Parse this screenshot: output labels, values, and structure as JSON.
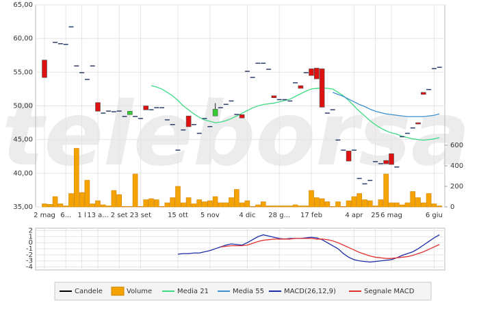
{
  "watermark": "teleborsa",
  "chart_data": [
    {
      "type": "candlestick",
      "categories": [
        "2 mag",
        null,
        null,
        null,
        "6...",
        null,
        null,
        "1 l",
        null,
        null,
        "13 a...",
        null,
        null,
        null,
        "2 set",
        null,
        null,
        null,
        "23 set",
        null,
        null,
        null,
        null,
        null,
        null,
        "15 ott",
        null,
        null,
        null,
        null,
        null,
        "5 nov",
        null,
        null,
        null,
        null,
        null,
        null,
        "4 dic",
        null,
        null,
        null,
        null,
        null,
        "28 g...",
        null,
        null,
        null,
        null,
        null,
        "17 feb",
        null,
        null,
        null,
        null,
        null,
        null,
        null,
        "4 apr",
        null,
        null,
        null,
        "25",
        null,
        null,
        "6 mag",
        null,
        null,
        null,
        null,
        null,
        null,
        null,
        "6 giu",
        null
      ],
      "ylim": [
        35,
        65
      ],
      "yticks": [
        {
          "value": 35,
          "label": "35,00"
        },
        {
          "value": 40,
          "label": "40,00"
        },
        {
          "value": 45,
          "label": "45,00"
        },
        {
          "value": 50,
          "label": "50,00"
        },
        {
          "value": 55,
          "label": "55,00"
        },
        {
          "value": 60,
          "label": "60,00"
        },
        {
          "value": 65,
          "label": "65,00"
        }
      ],
      "y2lim": [
        0,
        1967
      ],
      "y2ticks": [
        0,
        200,
        400,
        600
      ],
      "grid": true,
      "series": [
        {
          "type": "candlestick",
          "name": "Candele",
          "color": "#2c3e6b",
          "up_color": "#33cc33",
          "down_color": "#dd1111",
          "open": [
            56.8,
            null,
            59.5,
            59.3,
            59.2,
            61.8,
            56,
            55,
            54,
            56,
            50.5,
            49,
            49.3,
            49.2,
            49.3,
            48.5,
            48.7,
            48.5,
            48.2,
            50,
            49.5,
            49.8,
            49.8,
            48,
            47.3,
            43.5,
            46.5,
            48.5,
            47.3,
            46,
            48.2,
            47,
            48.5,
            49.8,
            50.3,
            50.8,
            48.8,
            48.7,
            55.2,
            54.3,
            56.4,
            56.4,
            55.5,
            51.5,
            51,
            51,
            50.8,
            53.5,
            53,
            55,
            55.5,
            55.6,
            55.5,
            49,
            49.5,
            45,
            43.5,
            43.3,
            43.5,
            39.3,
            38.5,
            39,
            41.8,
            41.5,
            41.9,
            42.9,
            41,
            45.5,
            46,
            46.8,
            47.5,
            52,
            52.5,
            55.6,
            55.8
          ],
          "high": [
            56.8,
            null,
            59.5,
            59.3,
            59.2,
            61.8,
            56,
            55,
            54,
            56,
            50.5,
            49,
            49.3,
            49.2,
            49.3,
            48.5,
            49.2,
            48.5,
            48.2,
            50,
            49.5,
            49.8,
            49.8,
            48,
            47.3,
            43.5,
            46.5,
            48.5,
            47.3,
            46,
            48.2,
            47,
            50.4,
            49.8,
            50.3,
            50.8,
            48.8,
            48.7,
            55.2,
            54.3,
            56.4,
            56.4,
            55.5,
            51.5,
            51,
            51,
            50.8,
            53.5,
            53,
            55,
            55.5,
            55.6,
            55.5,
            49,
            49.5,
            45,
            43.5,
            43.3,
            43.5,
            39.3,
            38.5,
            39,
            41.8,
            41.5,
            41.9,
            42.9,
            41,
            45.5,
            46,
            46.8,
            47.5,
            52,
            52.5,
            55.6,
            55.8
          ],
          "low": [
            54.2,
            null,
            59.5,
            59.3,
            59.2,
            61.8,
            56,
            55,
            54,
            56,
            49.2,
            49,
            49.3,
            49.2,
            49.3,
            48.5,
            48.7,
            48.5,
            48.2,
            49.4,
            49.5,
            49.8,
            49.8,
            48,
            47.3,
            43.5,
            46.5,
            46.9,
            47.3,
            46,
            48.2,
            47,
            48.5,
            49.8,
            50.3,
            50.8,
            48.8,
            48.2,
            55.2,
            54.3,
            56.4,
            56.4,
            55.5,
            51.2,
            51,
            51,
            50.8,
            53.5,
            52.6,
            55,
            54.5,
            54,
            49.8,
            49,
            49.5,
            45,
            43.5,
            41.8,
            43.5,
            39.3,
            38.5,
            39,
            41.8,
            41.5,
            41.4,
            41.3,
            41,
            45.5,
            46,
            46.8,
            47.3,
            51.7,
            52.5,
            55.6,
            55.8
          ],
          "close": [
            54.2,
            null,
            59.5,
            59.3,
            59.2,
            61.8,
            56,
            55,
            54,
            56,
            49.2,
            49,
            49.3,
            49.2,
            49.3,
            48.5,
            49.2,
            48.5,
            48.2,
            49.4,
            49.5,
            49.8,
            49.8,
            48,
            47.3,
            43.5,
            46.5,
            46.9,
            47.3,
            46,
            48.2,
            47,
            49.5,
            49.8,
            50.3,
            50.8,
            48.8,
            48.2,
            55.2,
            54.3,
            56.4,
            56.4,
            55.5,
            51.2,
            51,
            51,
            50.8,
            53.5,
            52.6,
            55,
            54.5,
            54,
            49.8,
            49,
            49.5,
            45,
            43.5,
            41.8,
            43.5,
            39.3,
            38.5,
            39,
            41.8,
            41.5,
            41.4,
            41.3,
            41,
            45.5,
            46,
            46.8,
            47.3,
            51.7,
            52.5,
            55.6,
            55.8
          ]
        },
        {
          "type": "bar",
          "name": "Volume",
          "color": "#f5a300",
          "axis": "y2",
          "values": [
            30,
            25,
            100,
            30,
            10,
            130,
            570,
            140,
            260,
            30,
            60,
            20,
            10,
            160,
            120,
            5,
            5,
            320,
            5,
            70,
            80,
            70,
            5,
            40,
            90,
            200,
            40,
            90,
            30,
            70,
            50,
            60,
            100,
            40,
            40,
            90,
            170,
            40,
            60,
            5,
            20,
            50,
            10,
            10,
            10,
            10,
            10,
            20,
            10,
            10,
            160,
            90,
            80,
            50,
            5,
            50,
            5,
            60,
            100,
            130,
            70,
            60,
            10,
            70,
            320,
            40,
            40,
            20,
            40,
            150,
            90,
            40,
            130,
            30,
            10
          ]
        },
        {
          "type": "line",
          "name": "Media 21",
          "color": "#3ddc84",
          "values": [
            null,
            null,
            null,
            null,
            null,
            null,
            null,
            null,
            null,
            null,
            null,
            null,
            null,
            null,
            null,
            null,
            null,
            null,
            null,
            null,
            53,
            52.8,
            52.5,
            52,
            51.5,
            50.8,
            50,
            49.4,
            48.8,
            48.3,
            47.9,
            47.7,
            47.5,
            47.6,
            47.8,
            48.1,
            48.5,
            48.9,
            49.3,
            49.7,
            50,
            50.2,
            50.3,
            50.4,
            50.6,
            50.8,
            51,
            51.4,
            51.8,
            52.2,
            52.5,
            52.6,
            52.7,
            52.6,
            52.5,
            52,
            51.5,
            50.8,
            50,
            49.2,
            48.5,
            47.8,
            47.2,
            46.7,
            46.3,
            46,
            45.8,
            45.5,
            45.3,
            45.1,
            45,
            44.9,
            45,
            45.1,
            45.3
          ]
        },
        {
          "type": "line",
          "name": "Media 55",
          "color": "#3a8fd0",
          "values": [
            null,
            null,
            null,
            null,
            null,
            null,
            null,
            null,
            null,
            null,
            null,
            null,
            null,
            null,
            null,
            null,
            null,
            null,
            null,
            null,
            null,
            null,
            null,
            null,
            null,
            null,
            null,
            null,
            null,
            null,
            null,
            null,
            null,
            null,
            null,
            null,
            null,
            null,
            null,
            null,
            null,
            null,
            null,
            null,
            null,
            null,
            null,
            null,
            null,
            null,
            null,
            null,
            null,
            null,
            52,
            51.7,
            51.4,
            51,
            50.6,
            50.2,
            49.9,
            49.5,
            49.2,
            49,
            48.8,
            48.7,
            48.6,
            48.5,
            48.4,
            48.4,
            48.4,
            48.4,
            48.5,
            48.6,
            48.8
          ]
        }
      ]
    },
    {
      "type": "line",
      "ylim": [
        -4.5,
        2.4
      ],
      "yticks": [
        -4,
        -3,
        -2,
        -1,
        0,
        1,
        2
      ],
      "grid": true,
      "series": [
        {
          "type": "line",
          "name": "MACD(26,12,9)",
          "color": "#1a2aa8",
          "values": [
            null,
            null,
            null,
            null,
            null,
            null,
            null,
            null,
            null,
            null,
            null,
            null,
            null,
            null,
            null,
            null,
            null,
            null,
            null,
            null,
            null,
            null,
            null,
            null,
            null,
            -1.9,
            -1.8,
            -1.8,
            -1.7,
            -1.7,
            -1.5,
            -1.3,
            -1,
            -0.7,
            -0.4,
            -0.2,
            -0.3,
            -0.4,
            0,
            0.5,
            1,
            1.3,
            1.1,
            0.9,
            0.7,
            0.6,
            0.7,
            0.7,
            0.7,
            0.8,
            0.9,
            0.8,
            0.5,
            0,
            -0.5,
            -1,
            -1.8,
            -2.4,
            -2.8,
            -3,
            -3.1,
            -3.2,
            -3.1,
            -3,
            -2.9,
            -2.8,
            -2.5,
            -2.1,
            -1.8,
            -1.5,
            -1,
            -0.4,
            0.2,
            0.8,
            1.3
          ]
        },
        {
          "type": "line",
          "name": "Segnale MACD",
          "color": "#e03030",
          "values": [
            null,
            null,
            null,
            null,
            null,
            null,
            null,
            null,
            null,
            null,
            null,
            null,
            null,
            null,
            null,
            null,
            null,
            null,
            null,
            null,
            null,
            null,
            null,
            null,
            null,
            null,
            null,
            null,
            null,
            null,
            null,
            null,
            null,
            -0.7,
            -0.6,
            -0.5,
            -0.5,
            -0.5,
            -0.4,
            -0.1,
            0.2,
            0.4,
            0.5,
            0.6,
            0.6,
            0.6,
            0.6,
            0.7,
            0.7,
            0.7,
            0.7,
            0.6,
            0.6,
            0.5,
            0.3,
            0,
            -0.4,
            -0.8,
            -1.2,
            -1.6,
            -1.9,
            -2.2,
            -2.4,
            -2.5,
            -2.6,
            -2.6,
            -2.5,
            -2.4,
            -2.3,
            -2.1,
            -1.8,
            -1.5,
            -1.1,
            -0.7,
            -0.3
          ]
        }
      ]
    }
  ]
}
